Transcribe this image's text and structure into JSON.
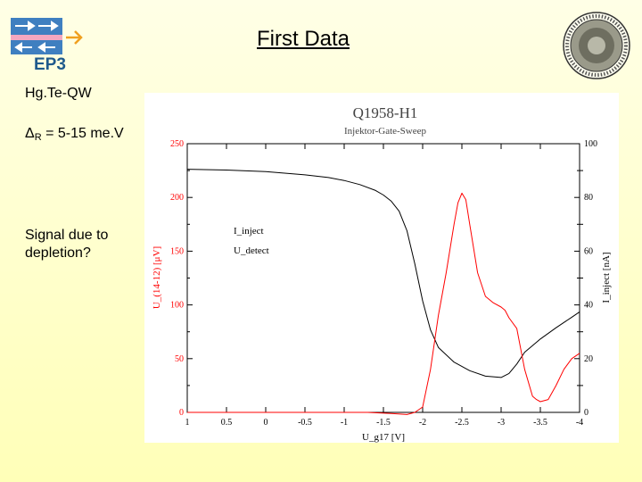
{
  "slide": {
    "logo_text": "EP3",
    "title": "First Data",
    "notes": {
      "line1": "Hg.Te-QW",
      "line2_symbol": "Δ",
      "line2_sub": "R",
      "line2_rest": " = 5-15 me.V",
      "line3": "Signal due to depletion?"
    }
  },
  "colors": {
    "u_detect": "#ff0000",
    "i_inject": "#000000",
    "axis_left": "#ff0000",
    "axis_right": "#000000"
  },
  "chart_data": {
    "type": "line",
    "title": "Q1958-H1",
    "subtitle": "Injektor-Gate-Sweep",
    "xlabel": "U_g17 [V]",
    "ylabel_left": "U_(14-12) [μV]",
    "ylabel_right": "I_inject [nA]",
    "x_ticks": [
      "1",
      "0.5",
      "0",
      "-0.5",
      "-1",
      "-1.5",
      "-2",
      "-2.5",
      "-3",
      "-3.5",
      "-4"
    ],
    "y_left_ticks": [
      "0",
      "50",
      "100",
      "150",
      "200",
      "250"
    ],
    "y_right_ticks": [
      "0",
      "20",
      "40",
      "60",
      "80",
      "100"
    ],
    "xlim": [
      1,
      -4
    ],
    "ylim_left": [
      0,
      250
    ],
    "ylim_right": [
      0,
      100
    ],
    "legend": [
      "I_inject",
      "U_detect"
    ],
    "series": [
      {
        "name": "I_inject",
        "axis": "right",
        "x": [
          1.0,
          0.5,
          0.0,
          -0.5,
          -0.8,
          -1.0,
          -1.2,
          -1.4,
          -1.5,
          -1.6,
          -1.7,
          -1.8,
          -1.9,
          -2.0,
          -2.1,
          -2.2,
          -2.4,
          -2.6,
          -2.8,
          -3.0,
          -3.1,
          -3.2,
          -3.3,
          -3.5,
          -3.7,
          -3.9,
          -4.0
        ],
        "y": [
          90.5,
          90.2,
          89.6,
          88.4,
          87.4,
          86.3,
          84.8,
          82.6,
          80.9,
          78.6,
          74.9,
          67.6,
          55.3,
          41.5,
          30.7,
          24.2,
          18.7,
          15.5,
          13.5,
          13.0,
          14.5,
          18.0,
          22.4,
          27.3,
          31.5,
          35.4,
          37.4
        ]
      },
      {
        "name": "U_detect",
        "axis": "left",
        "x": [
          1.0,
          0.5,
          0.0,
          -0.5,
          -1.0,
          -1.3,
          -1.6,
          -1.8,
          -1.9,
          -2.0,
          -2.1,
          -2.2,
          -2.3,
          -2.4,
          -2.45,
          -2.5,
          -2.55,
          -2.6,
          -2.7,
          -2.8,
          -2.9,
          -3.0,
          -3.05,
          -3.1,
          -3.2,
          -3.3,
          -3.4,
          -3.45,
          -3.5,
          -3.6,
          -3.7,
          -3.8,
          -3.9,
          -4.0
        ],
        "y": [
          0,
          0,
          0,
          0,
          0,
          0,
          -1,
          -2,
          0,
          5,
          40,
          90,
          130,
          175,
          195,
          204,
          198,
          175,
          130,
          108,
          102,
          98,
          95,
          88,
          78,
          40,
          15,
          12,
          10,
          12,
          25,
          40,
          50,
          55
        ]
      }
    ]
  }
}
